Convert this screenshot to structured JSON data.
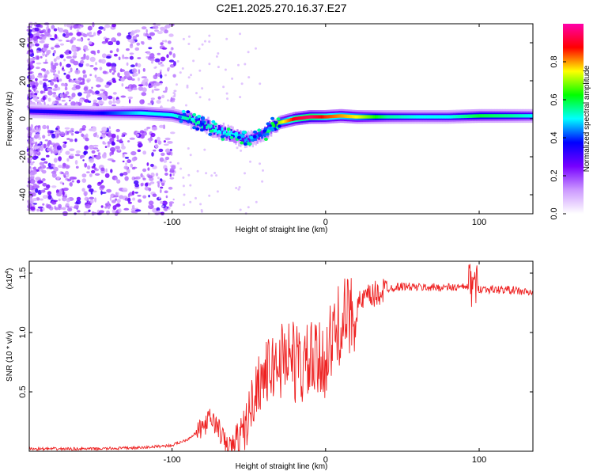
{
  "title": "C2E1.2025.270.16.37.E27",
  "chart_data": [
    {
      "type": "heatmap",
      "name": "spectrogram",
      "xlabel": "Height of straight line (km)",
      "ylabel": "Frequency (Hz)",
      "xlim": [
        -193,
        135
      ],
      "ylim": [
        -50,
        50
      ],
      "x_ticks": [
        -100,
        0,
        100
      ],
      "y_ticks": [
        -40,
        -20,
        0,
        20,
        40
      ],
      "colorbar": {
        "label": "Normalized spectral amplitude",
        "range": [
          0,
          1
        ],
        "ticks": [
          0.0,
          0.2,
          0.4,
          0.6,
          0.8
        ],
        "colors": [
          "#ffffff",
          "#cc99ff",
          "#7700ff",
          "#0000ff",
          "#00ffff",
          "#00ff00",
          "#ffff00",
          "#ff0000",
          "#ff00aa"
        ]
      },
      "ridge": {
        "x": [
          -193,
          -150,
          -120,
          -100,
          -90,
          -80,
          -70,
          -60,
          -50,
          -40,
          -35,
          -30,
          -25,
          -20,
          -10,
          0,
          10,
          20,
          40,
          60,
          80,
          100,
          120,
          135
        ],
        "y": [
          4,
          3,
          3,
          2,
          0,
          -3,
          -6,
          -9,
          -11,
          -8,
          -4,
          -2,
          -1,
          0,
          1,
          1,
          1.5,
          1,
          1,
          1,
          1,
          1.5,
          1.5,
          1.5
        ],
        "amplitude": [
          0.35,
          0.35,
          0.5,
          0.5,
          0.55,
          0.55,
          0.5,
          0.5,
          0.45,
          0.4,
          0.6,
          0.7,
          0.8,
          0.9,
          0.95,
          0.85,
          0.8,
          0.75,
          0.55,
          0.5,
          0.5,
          0.6,
          0.55,
          0.5
        ]
      }
    },
    {
      "type": "line",
      "name": "snr",
      "xlabel": "Height of straight line (km)",
      "ylabel": "SNR (10 * v/v)",
      "y_multiplier": "(x10",
      "y_multiplier_exp": "4",
      "xlim": [
        -193,
        135
      ],
      "ylim": [
        0,
        1.6
      ],
      "x_ticks": [
        -100,
        0,
        100
      ],
      "y_ticks": [
        0.5,
        1.0,
        1.5
      ],
      "color": "#ee2222",
      "series": [
        {
          "name": "SNR",
          "x": [
            -193,
            -150,
            -120,
            -100,
            -90,
            -80,
            -75,
            -70,
            -65,
            -60,
            -55,
            -50,
            -45,
            -40,
            -35,
            -30,
            -25,
            -20,
            -15,
            -10,
            -5,
            0,
            5,
            10,
            15,
            20,
            25,
            30,
            40,
            50,
            60,
            70,
            80,
            90,
            95,
            100,
            110,
            120,
            135
          ],
          "y": [
            0.02,
            0.02,
            0.03,
            0.05,
            0.1,
            0.2,
            0.28,
            0.2,
            0.05,
            0.04,
            0.1,
            0.3,
            0.55,
            0.65,
            0.7,
            0.75,
            0.85,
            0.75,
            0.7,
            0.75,
            0.72,
            0.8,
            0.95,
            1.1,
            1.12,
            1.2,
            1.28,
            1.3,
            1.37,
            1.39,
            1.38,
            1.38,
            1.38,
            1.38,
            1.4,
            1.37,
            1.36,
            1.36,
            1.33
          ]
        }
      ]
    }
  ]
}
